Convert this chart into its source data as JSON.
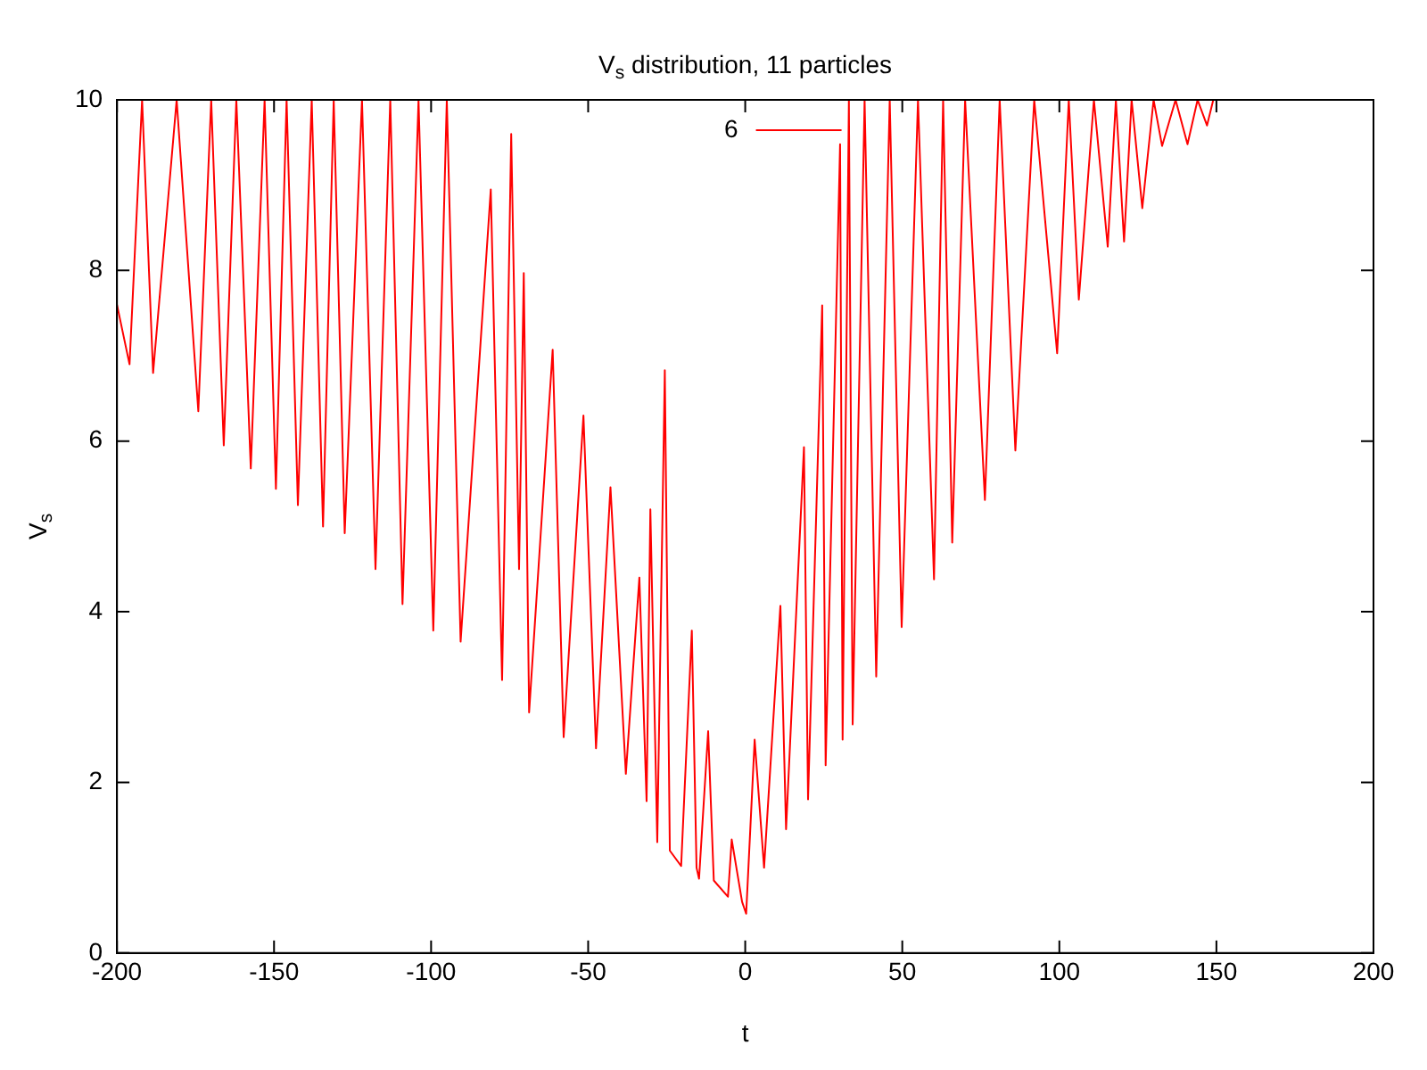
{
  "chart_data": {
    "type": "line",
    "title": "V$_{s}$ distribution, 11 particles",
    "xlabel": "t",
    "ylabel": "V$_{s}$",
    "xlim": [
      -200,
      200
    ],
    "xticks": [
      -200,
      -150,
      -100,
      -50,
      0,
      50,
      100,
      150,
      200
    ],
    "ylim": [
      0,
      10
    ],
    "yticks": [
      0,
      2,
      4,
      6,
      8,
      10
    ],
    "grid": false,
    "legend": "top",
    "marker": "none",
    "line_style": "solid",
    "series": [
      {
        "name": "6",
        "color": "#ff0000",
        "x": [
          -200,
          -196,
          -192,
          -188.5,
          -181,
          -174.1,
          -170,
          -166,
          -162,
          -157.4,
          -153,
          -149.4,
          -146,
          -142.4,
          -138,
          -134.4,
          -131,
          -127.5,
          -122,
          -117.7,
          -113,
          -109.1,
          -104,
          -99.3,
          -95,
          -90.6,
          -81,
          -77.4,
          -74.5,
          -72,
          -70.5,
          -68.8,
          -61.3,
          -57.8,
          -51.5,
          -47.5,
          -42.9,
          -38,
          -33.7,
          -31.4,
          -30.2,
          -28,
          -25.6,
          -24,
          -20.4,
          -17,
          -15.5,
          -14.7,
          -11.8,
          -10,
          -5.5,
          -4.3,
          -1,
          0.3,
          3,
          6,
          11.2,
          13,
          18.7,
          20,
          24.5,
          25.6,
          30.2,
          31,
          33,
          34.2,
          38,
          41.7,
          46,
          49.8,
          55,
          60.1,
          63,
          65.9,
          70,
          76.3,
          81,
          86,
          92,
          99.3,
          103,
          106.2,
          111,
          115.4,
          118,
          120.6,
          123,
          126.4,
          130,
          132.7,
          137,
          140.8,
          144,
          147,
          149
        ],
        "values": [
          7.6,
          6.9,
          10,
          6.8,
          10,
          6.35,
          10,
          5.95,
          10,
          5.68,
          10,
          5.44,
          10,
          5.25,
          10,
          5.0,
          10,
          4.92,
          10,
          4.5,
          10,
          4.09,
          10,
          3.78,
          10,
          3.65,
          8.95,
          3.2,
          9.6,
          4.5,
          7.97,
          2.82,
          7.07,
          2.53,
          6.3,
          2.4,
          5.46,
          2.1,
          4.4,
          1.78,
          5.2,
          1.3,
          6.83,
          1.2,
          1.02,
          3.78,
          1.0,
          0.87,
          2.6,
          0.85,
          0.66,
          1.33,
          0.6,
          0.46,
          2.5,
          1.0,
          4.07,
          1.45,
          5.93,
          1.8,
          7.59,
          2.2,
          9.48,
          2.5,
          10,
          2.68,
          10,
          3.24,
          10,
          3.82,
          10,
          4.38,
          10,
          4.81,
          10,
          5.31,
          10,
          5.89,
          10,
          7.03,
          10,
          7.66,
          10,
          8.28,
          10,
          8.34,
          10,
          8.73,
          10,
          9.46,
          10,
          9.48,
          10,
          9.7,
          10
        ]
      }
    ]
  }
}
